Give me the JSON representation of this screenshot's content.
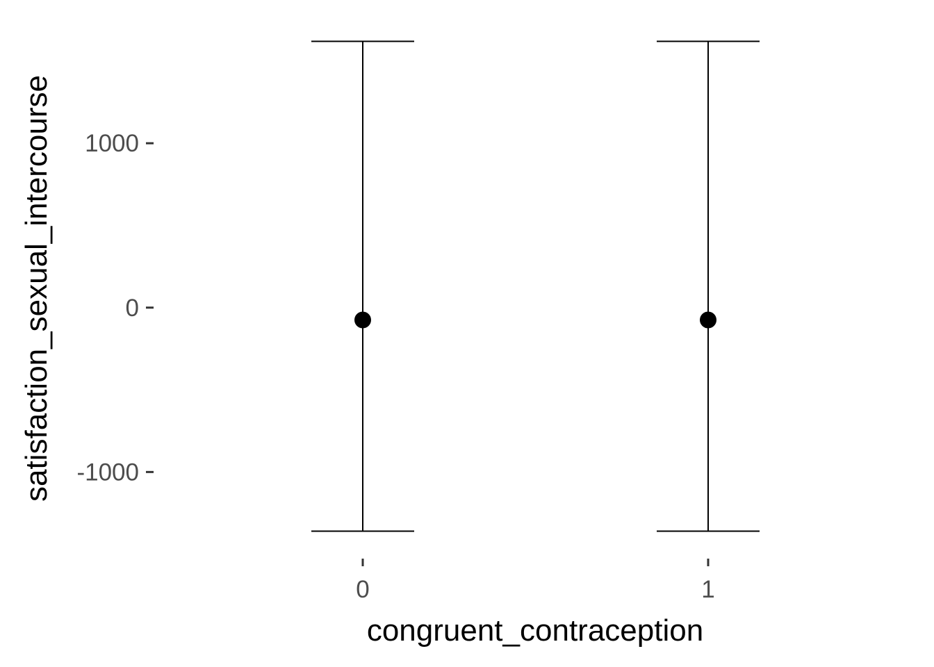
{
  "chart_data": {
    "type": "errorbar",
    "xlabel": "congruent_contraception",
    "ylabel": "satisfaction_sexual_intercourse",
    "categories": [
      "0",
      "1"
    ],
    "points": [
      {
        "x": "0",
        "y": -75,
        "ymin": -1360,
        "ymax": 1620
      },
      {
        "x": "1",
        "y": -75,
        "ymin": -1360,
        "ymax": 1620
      }
    ],
    "y_ticks": [
      -1000,
      0,
      1000
    ],
    "y_tick_labels": [
      "-1000",
      "0",
      "1000"
    ],
    "ylim": [
      -1510,
      1770
    ],
    "grid": false,
    "legend": "none",
    "colors": {
      "point": "#000000",
      "errorbar": "#000000",
      "tick_text": "#4d4d4d",
      "axis_title": "#000000",
      "ticks": "#333333"
    }
  }
}
